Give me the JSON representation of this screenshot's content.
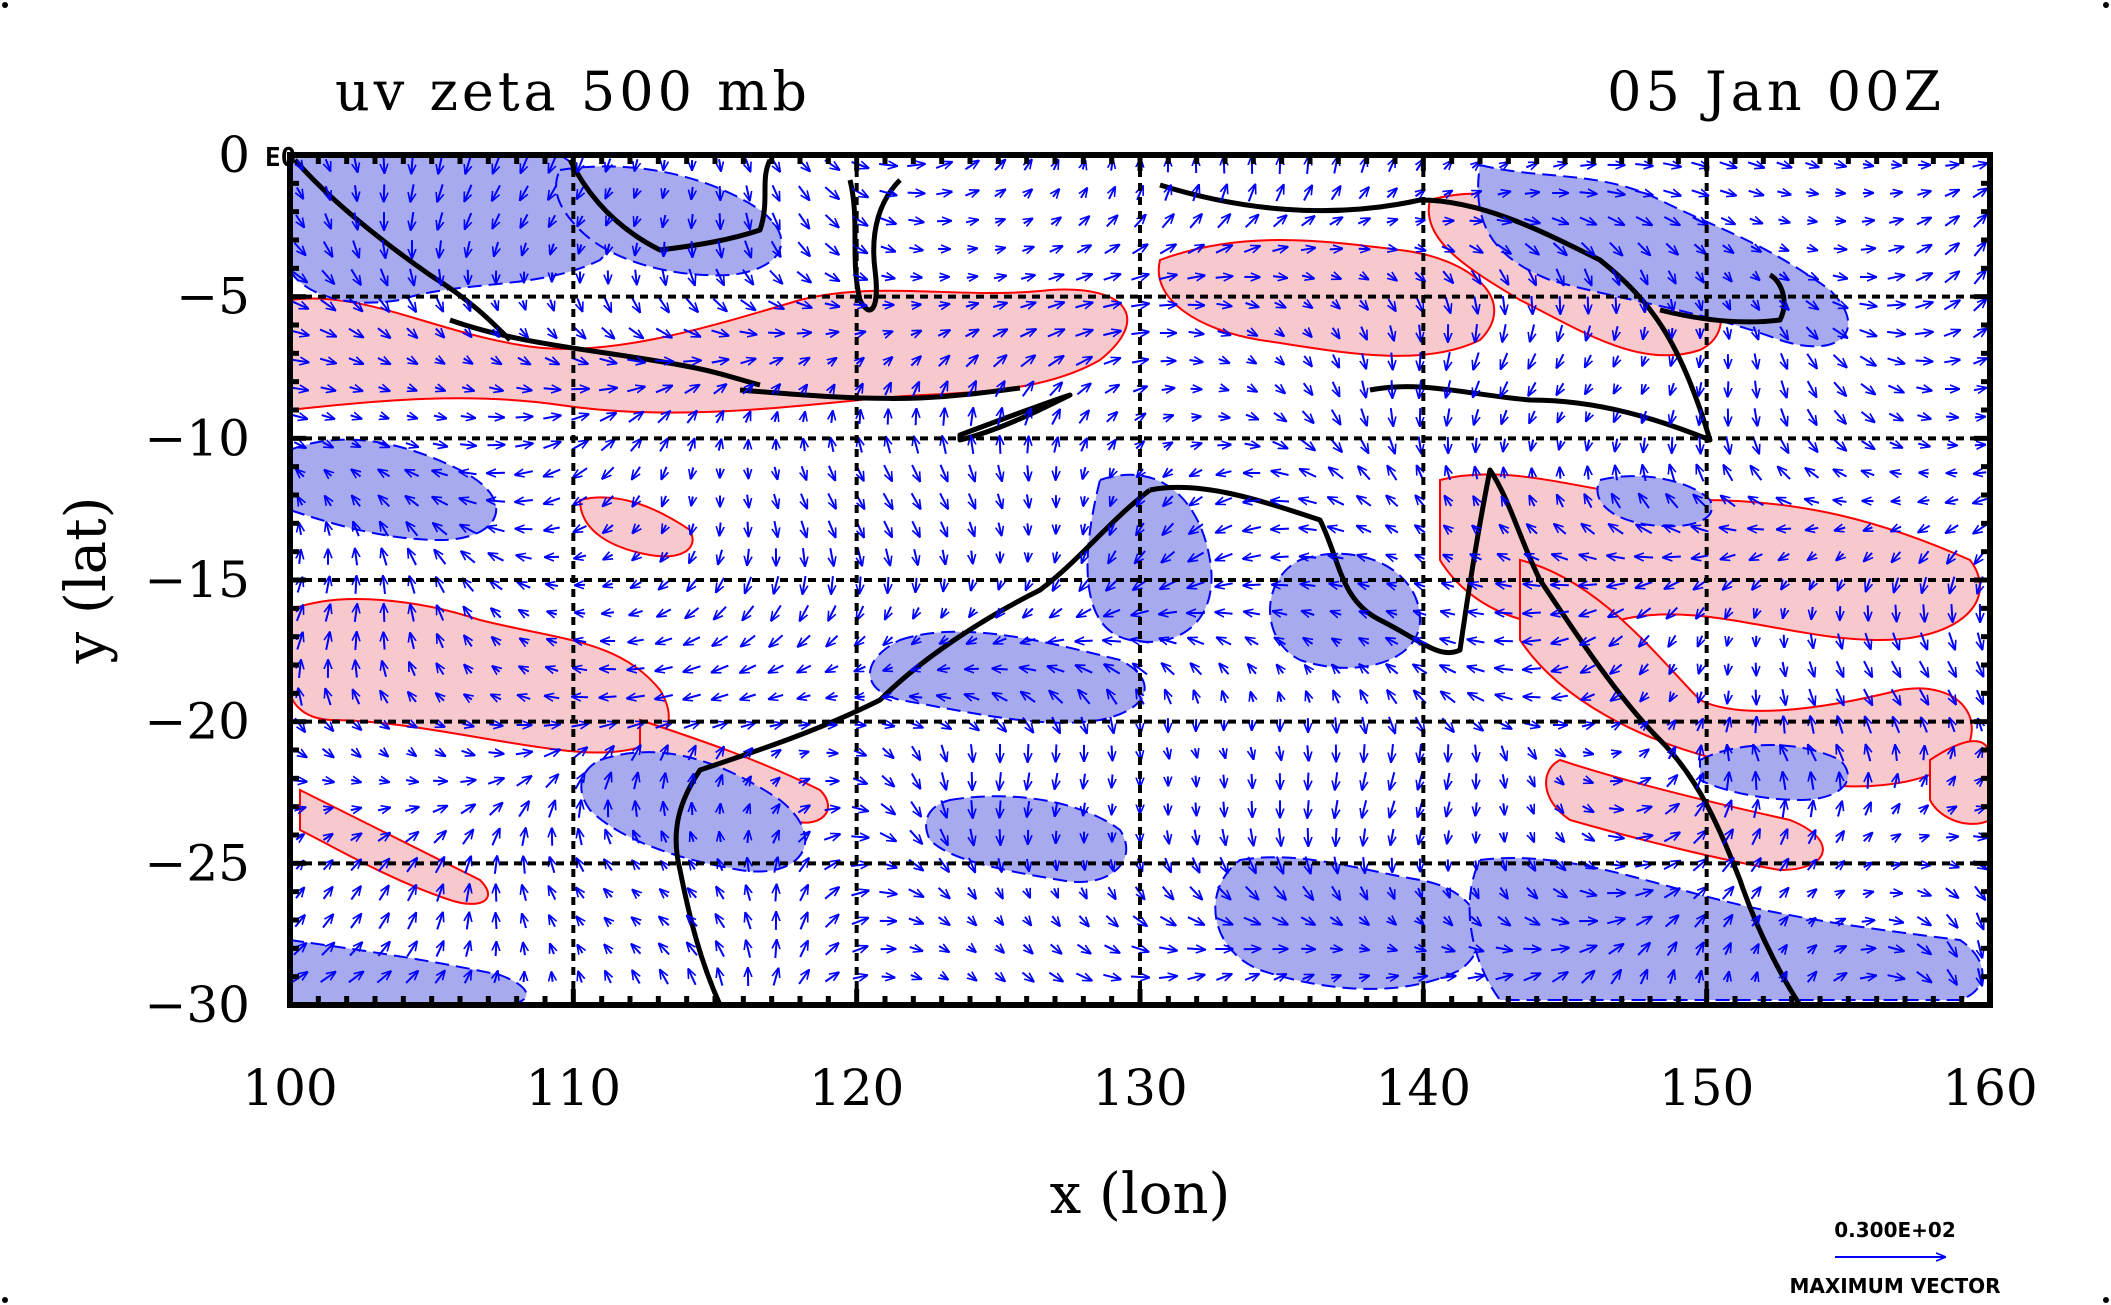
{
  "chart_data": {
    "type": "contour",
    "title_left": "uv zeta 500 mb",
    "title_right": "05 Jan 00Z",
    "xlabel": "x (lon)",
    "ylabel": "y (lat)",
    "xlim": [
      100,
      160
    ],
    "ylim": [
      -30,
      0
    ],
    "x_ticks": [
      "100",
      "110",
      "120",
      "130",
      "140",
      "150",
      "160"
    ],
    "y_ticks": [
      "0",
      "−5",
      "−10",
      "−15",
      "−20",
      "−25",
      "−30"
    ],
    "y_multiplier_label": "E0",
    "grid": true,
    "fields": {
      "vectors": "wind uv",
      "contours": "zeta vorticity",
      "positive_color": "#ff0000",
      "positive_fill": "#f7c8cc",
      "negative_color": "#0000ff",
      "negative_fill": "#a8aaf0"
    },
    "reference_vector": {
      "value_label": "0.300E+02",
      "caption": "MAXIMUM VECTOR"
    }
  }
}
